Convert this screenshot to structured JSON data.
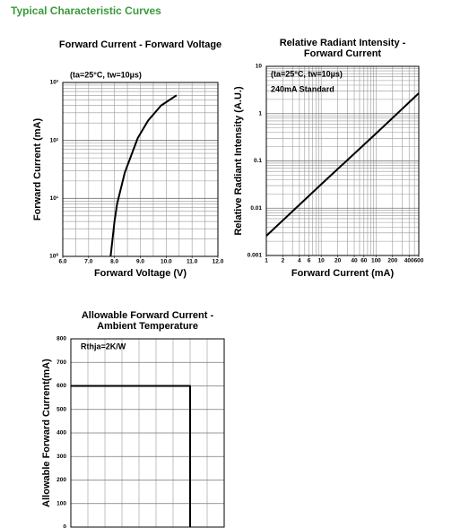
{
  "header": {
    "title": "Typical Characteristic Curves"
  },
  "chart_data": [
    {
      "type": "line",
      "title": [
        "Forward Current - Forward Voltage"
      ],
      "x_label": "Forward Voltage (V)",
      "y_label": "Forward Current (mA)",
      "annotations": [
        "(ta=25°C, tw=10µs)"
      ],
      "xscale": "linear",
      "yscale": "log",
      "grid": true,
      "xlim": [
        6,
        12
      ],
      "xticks": [
        {
          "value": 6,
          "label": "6.0"
        },
        {
          "value": 7,
          "label": "7.0"
        },
        {
          "value": 8,
          "label": "8.0"
        },
        {
          "value": 9,
          "label": "9.0"
        },
        {
          "value": 10,
          "label": "10.0"
        },
        {
          "value": 11,
          "label": "11.0"
        },
        {
          "value": 12,
          "label": "12.0"
        }
      ],
      "ylim": [
        1,
        1000
      ],
      "yticks": [
        {
          "value": 1,
          "label": "10⁰"
        },
        {
          "value": 10,
          "label": "10¹"
        },
        {
          "value": 100,
          "label": "10²"
        },
        {
          "value": 1000,
          "label": "10³"
        }
      ],
      "series": [
        {
          "color": "#000000",
          "x": [
            7.85,
            8.0,
            8.1,
            8.4,
            8.9,
            9.3,
            9.8,
            10.4
          ],
          "values": [
            1,
            4,
            8,
            28,
            110,
            220,
            400,
            600
          ]
        }
      ]
    },
    {
      "type": "line",
      "title": [
        "Relative Radiant Intensity -",
        "Forward Current"
      ],
      "x_label": "Forward Current (mA)",
      "y_label": "Relative Radiant Intensity (A.U.)",
      "annotations": [
        "(ta=25°C, tw=10µs)",
        "240mA Standard"
      ],
      "xscale": "log",
      "yscale": "log",
      "grid": true,
      "xlim": [
        1,
        600
      ],
      "xticks": [
        1,
        2,
        4,
        6,
        10,
        20,
        40,
        60,
        100,
        200,
        400,
        600
      ],
      "ylim": [
        0.001,
        10
      ],
      "yticks": [
        0.001,
        0.01,
        0.1,
        1,
        10
      ],
      "series": [
        {
          "color": "#000000",
          "x": [
            1,
            10,
            100,
            600
          ],
          "values": [
            0.0026,
            0.032,
            0.38,
            2.7
          ]
        }
      ]
    },
    {
      "type": "line",
      "title": [
        "Allowable Forward Current -",
        "Ambient Temperature"
      ],
      "y_label": "Allowable Forward Current(mA)",
      "annotations": [
        "Rthja=2K/W"
      ],
      "xscale": "linear",
      "yscale": "linear",
      "grid": true,
      "xlim": [
        0,
        90
      ],
      "ylim": [
        0,
        800
      ],
      "yticks": [
        0,
        100,
        200,
        300,
        400,
        500,
        600,
        700,
        800
      ],
      "series": [
        {
          "color": "#000000",
          "x": [
            0,
            70,
            70
          ],
          "values": [
            600,
            600,
            0
          ]
        }
      ]
    }
  ]
}
